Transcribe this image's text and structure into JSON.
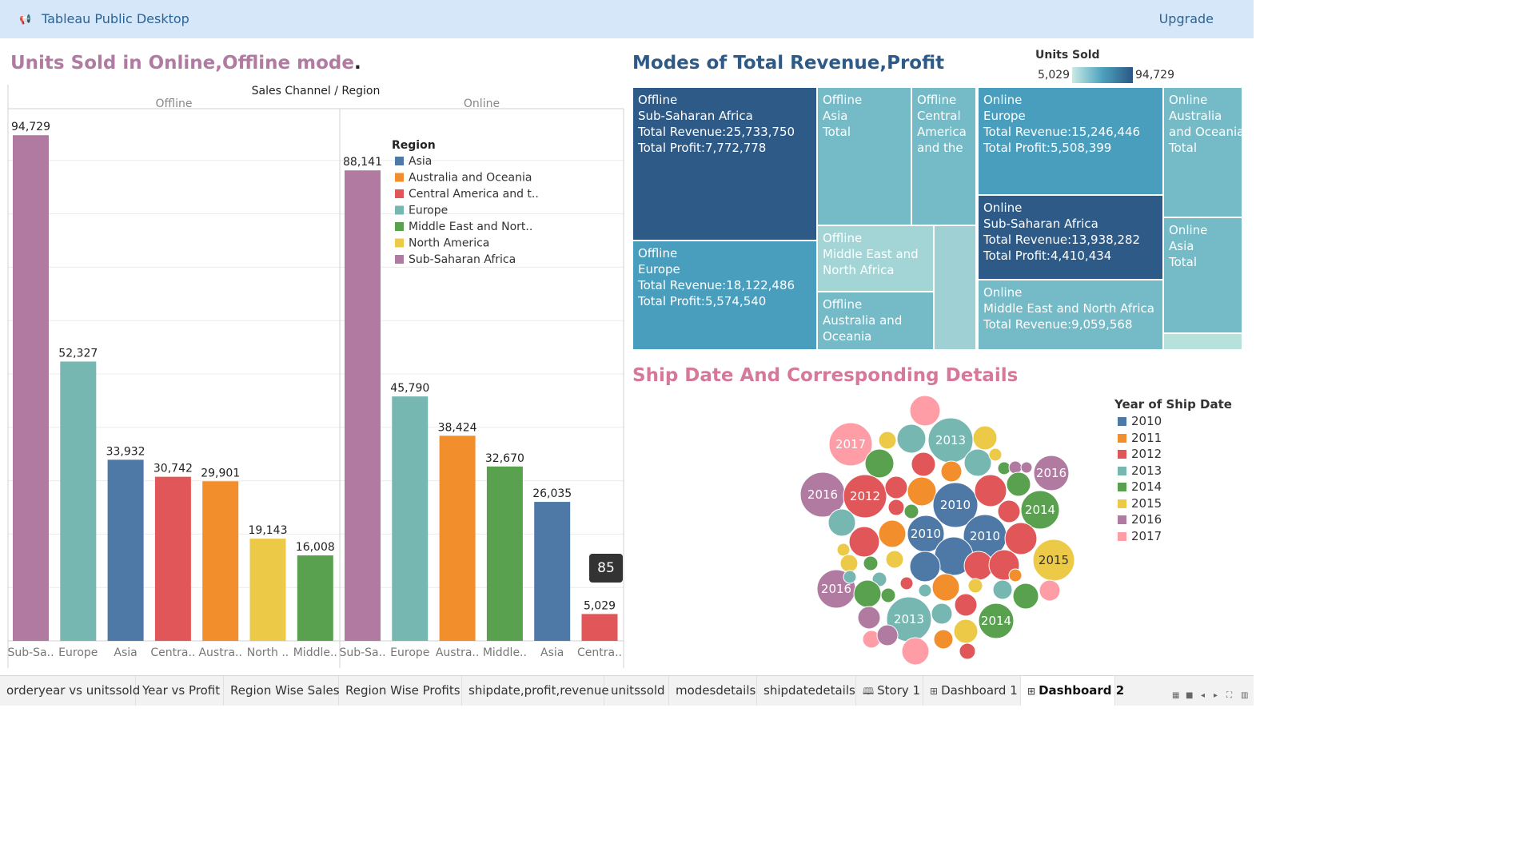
{
  "app": {
    "title": "Tableau Public Desktop",
    "upgrade": "Upgrade"
  },
  "colors": {
    "Asia": "#4e79a7",
    "Australia and Oceania": "#f28e2b",
    "Central America and the Caribbean": "#e15759",
    "Europe": "#76b7b2",
    "Middle East and North Africa": "#59a14f",
    "North America": "#edc948",
    "Sub-Saharan Africa": "#b07aa1"
  },
  "units_chart": {
    "title": "Units Sold in Online,Offline mode",
    "title_dot": ".",
    "header": "Sales Channel  /  Region",
    "legend_title": "Region",
    "legend": [
      "Asia",
      "Australia and Oceania",
      "Central America and t..",
      "Europe",
      "Middle East and Nort..",
      "North America",
      "Sub-Saharan Africa"
    ],
    "tooltip": "85"
  },
  "chart_data": {
    "type": "bar",
    "title": "Units Sold in Online,Offline mode.",
    "ylim": [
      0,
      100000
    ],
    "panels": [
      {
        "name": "Offline",
        "bars": [
          {
            "label": "Sub-Sa..",
            "region": "Sub-Saharan Africa",
            "value": 94729,
            "value_label": "94,729"
          },
          {
            "label": "Europe",
            "region": "Europe",
            "value": 52327,
            "value_label": "52,327"
          },
          {
            "label": "Asia",
            "region": "Asia",
            "value": 33932,
            "value_label": "33,932"
          },
          {
            "label": "Centra..",
            "region": "Central America and the Caribbean",
            "value": 30742,
            "value_label": "30,742"
          },
          {
            "label": "Austra..",
            "region": "Australia and Oceania",
            "value": 29901,
            "value_label": "29,901"
          },
          {
            "label": "North ..",
            "region": "North America",
            "value": 19143,
            "value_label": "19,143"
          },
          {
            "label": "Middle..",
            "region": "Middle East and North Africa",
            "value": 16008,
            "value_label": "16,008"
          }
        ]
      },
      {
        "name": "Online",
        "bars": [
          {
            "label": "Sub-Sa..",
            "region": "Sub-Saharan Africa",
            "value": 88141,
            "value_label": "88,141"
          },
          {
            "label": "Europe",
            "region": "Europe",
            "value": 45790,
            "value_label": "45,790"
          },
          {
            "label": "Austra..",
            "region": "Australia and Oceania",
            "value": 38424,
            "value_label": "38,424"
          },
          {
            "label": "Middle..",
            "region": "Middle East and North Africa",
            "value": 32670,
            "value_label": "32,670"
          },
          {
            "label": "Asia",
            "region": "Asia",
            "value": 26035,
            "value_label": "26,035"
          },
          {
            "label": "Centra..",
            "region": "Central America and the Caribbean",
            "value": 5029,
            "value_label": "5,029"
          }
        ]
      }
    ]
  },
  "treemap": {
    "title": "Modes of Total Revenue,Profit",
    "legend_title": "Units Sold",
    "legend_min": "5,029",
    "legend_max": "94,729",
    "cells": [
      {
        "lines": [
          "Offline",
          "Sub-Saharan Africa",
          "Total Revenue:25,733,750",
          "Total Profit:7,772,778"
        ],
        "color": "#2d5a87"
      },
      {
        "lines": [
          "Offline",
          "Asia",
          "Total"
        ],
        "color": "#74bac7"
      },
      {
        "lines": [
          "Offline",
          "Central",
          "America",
          "and the"
        ],
        "color": "#74bac7"
      },
      {
        "lines": [
          "Online",
          "Europe",
          "Total Revenue:15,246,446",
          "Total Profit:5,508,399"
        ],
        "color": "#4a9ebd"
      },
      {
        "lines": [
          "Online",
          "Australia",
          "and Oceania",
          "Total"
        ],
        "color": "#74bac7"
      },
      {
        "lines": [
          "Offline",
          "Europe",
          "Total Revenue:18,122,486",
          "Total Profit:5,574,540"
        ],
        "color": "#4a9ebd"
      },
      {
        "lines": [
          "Offline",
          "Middle East and",
          "North Africa"
        ],
        "color": "#a3d5d6"
      },
      {
        "lines": [],
        "color": "#9fd1d4"
      },
      {
        "lines": [
          "Online",
          "Sub-Saharan Africa",
          "Total Revenue:13,938,282",
          "Total Profit:4,410,434"
        ],
        "color": "#2d5a87"
      },
      {
        "lines": [
          "Online",
          "Asia",
          "Total"
        ],
        "color": "#74bac7"
      },
      {
        "lines": [
          "Offline",
          "Australia and",
          "Oceania"
        ],
        "color": "#74bac7"
      },
      {
        "lines": [
          "Online",
          "Middle East and North Africa",
          "Total Revenue:9,059,568"
        ],
        "color": "#74bac7"
      },
      {
        "lines": [],
        "color": "#b7e2dc"
      }
    ]
  },
  "bubbles": {
    "title": "Ship Date And Corresponding Details",
    "legend_title": "Year of Ship Date",
    "legend": [
      {
        "year": "2010",
        "color": "#4e79a7"
      },
      {
        "year": "2011",
        "color": "#f28e2b"
      },
      {
        "year": "2012",
        "color": "#e15759"
      },
      {
        "year": "2013",
        "color": "#76b7b2"
      },
      {
        "year": "2014",
        "color": "#59a14f"
      },
      {
        "year": "2015",
        "color": "#edc948"
      },
      {
        "year": "2016",
        "color": "#b07aa1"
      },
      {
        "year": "2017",
        "color": "#ff9da7"
      }
    ],
    "labeled": [
      "2017",
      "2013",
      "2016",
      "2012",
      "2010",
      "2014",
      "2016",
      "2010",
      "2010",
      "2015",
      "2016",
      "2013",
      "2014"
    ]
  },
  "tabs": [
    {
      "label": "orderyear vs unitssold",
      "glyph": ""
    },
    {
      "label": "Year vs Profit",
      "glyph": ""
    },
    {
      "label": "Region Wise Sales",
      "glyph": ""
    },
    {
      "label": "Region Wise Profits",
      "glyph": ""
    },
    {
      "label": "shipdate,profit,revenue",
      "glyph": ""
    },
    {
      "label": "unitssold",
      "glyph": ""
    },
    {
      "label": "modesdetails",
      "glyph": ""
    },
    {
      "label": "shipdatedetails",
      "glyph": ""
    },
    {
      "label": "Story 1",
      "glyph": "🕮"
    },
    {
      "label": "Dashboard 1",
      "glyph": "⊞"
    },
    {
      "label": "Dashboard 2",
      "glyph": "⊞",
      "active": true
    }
  ]
}
